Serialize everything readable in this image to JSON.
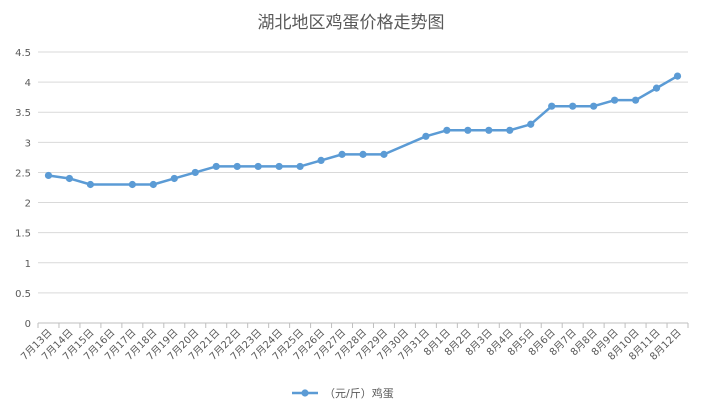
{
  "chart_data": {
    "type": "line",
    "title": "湖北地区鸡蛋价格走势图",
    "xlabel": "",
    "ylabel": "",
    "ylim": [
      0,
      4.5
    ],
    "yticks": [
      "0",
      "0.5",
      "1",
      "1.5",
      "2",
      "2.5",
      "3",
      "3.5",
      "4",
      "4.5"
    ],
    "categories": [
      "7月13日",
      "7月14日",
      "7月15日",
      "7月16日",
      "7月17日",
      "7月18日",
      "7月19日",
      "7月20日",
      "7月21日",
      "7月22日",
      "7月23日",
      "7月24日",
      "7月25日",
      "7月26日",
      "7月27日",
      "7月28日",
      "7月29日",
      "7月30日",
      "7月31日",
      "8月1日",
      "8月2日",
      "8月3日",
      "8月4日",
      "8月5日",
      "8月6日",
      "8月7日",
      "8月8日",
      "8月9日",
      "8月10日",
      "8月11日",
      "8月12日"
    ],
    "series": [
      {
        "name": "（元/斤）鸡蛋",
        "color": "#5b9bd5",
        "values": [
          2.45,
          2.4,
          2.3,
          null,
          2.3,
          2.3,
          2.4,
          2.5,
          2.6,
          2.6,
          2.6,
          2.6,
          2.6,
          2.7,
          2.8,
          2.8,
          2.8,
          null,
          3.1,
          3.2,
          3.2,
          3.2,
          3.2,
          3.3,
          3.6,
          3.6,
          3.6,
          3.7,
          3.7,
          3.9,
          4.1
        ]
      }
    ],
    "grid": true,
    "legend_position": "bottom"
  }
}
